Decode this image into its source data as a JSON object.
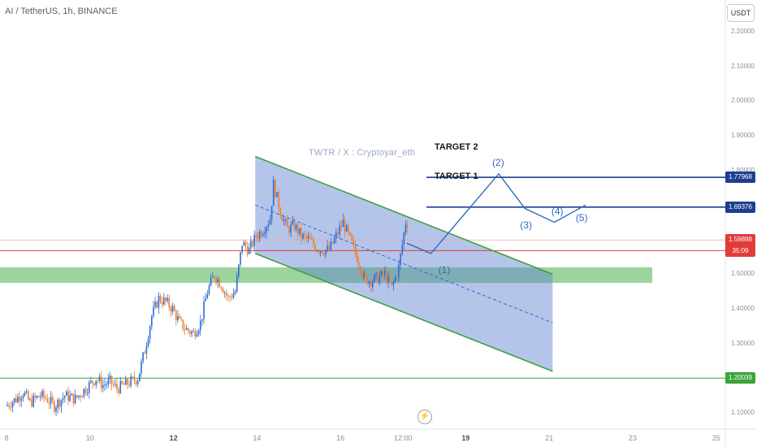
{
  "header": {
    "title": "AI / TetherUS, 1h, BINANCE",
    "currency_button": "USDT"
  },
  "watermark": "TWTR / X : Cryptoyar_eth",
  "replay_icon": "lightning-icon",
  "chart_data": {
    "type": "candlestick",
    "symbol": "AI / TetherUS",
    "interval": "1h",
    "exchange": "BINANCE",
    "ylim": [
      1.11,
      2.25
    ],
    "y_ticks": [
      {
        "label": "2.20000",
        "value": 2.2
      },
      {
        "label": "2.10000",
        "value": 2.1
      },
      {
        "label": "2.00000",
        "value": 2.0
      },
      {
        "label": "1.90000",
        "value": 1.9
      },
      {
        "label": "1.80000",
        "value": 1.8
      },
      {
        "label": "1.70000",
        "value": 1.7
      },
      {
        "label": "1.60000",
        "value": 1.6
      },
      {
        "label": "1.50000",
        "value": 1.5
      },
      {
        "label": "1.40000",
        "value": 1.4
      },
      {
        "label": "1.30000",
        "value": 1.3
      },
      {
        "label": "1.20000",
        "value": 1.2
      },
      {
        "label": "1.10000",
        "value": 1.1
      }
    ],
    "x_ticks": [
      {
        "label": "8",
        "t": 0,
        "bold": false
      },
      {
        "label": "10",
        "t": 48,
        "bold": false
      },
      {
        "label": "12",
        "t": 96,
        "bold": true
      },
      {
        "label": "14",
        "t": 144,
        "bold": false
      },
      {
        "label": "16",
        "t": 192,
        "bold": false
      },
      {
        "label": "12:00",
        "t": 228,
        "bold": false
      },
      {
        "label": "19",
        "t": 264,
        "bold": true
      },
      {
        "label": "21",
        "t": 312,
        "bold": false
      },
      {
        "label": "23",
        "t": 360,
        "bold": false
      },
      {
        "label": "25",
        "t": 408,
        "bold": false
      }
    ],
    "price_path": [
      [
        0,
        1.12
      ],
      [
        6,
        1.14
      ],
      [
        10,
        1.16
      ],
      [
        14,
        1.13
      ],
      [
        20,
        1.15
      ],
      [
        24,
        1.14
      ],
      [
        28,
        1.12
      ],
      [
        34,
        1.15
      ],
      [
        40,
        1.14
      ],
      [
        44,
        1.16
      ],
      [
        48,
        1.18
      ],
      [
        52,
        1.2
      ],
      [
        56,
        1.18
      ],
      [
        60,
        1.19
      ],
      [
        64,
        1.17
      ],
      [
        68,
        1.18
      ],
      [
        72,
        1.19
      ],
      [
        76,
        1.2
      ],
      [
        80,
        1.28
      ],
      [
        84,
        1.38
      ],
      [
        88,
        1.43
      ],
      [
        92,
        1.42
      ],
      [
        96,
        1.4
      ],
      [
        100,
        1.36
      ],
      [
        104,
        1.34
      ],
      [
        108,
        1.33
      ],
      [
        112,
        1.36
      ],
      [
        116,
        1.45
      ],
      [
        120,
        1.5
      ],
      [
        124,
        1.47
      ],
      [
        128,
        1.43
      ],
      [
        132,
        1.45
      ],
      [
        136,
        1.59
      ],
      [
        140,
        1.57
      ],
      [
        144,
        1.61
      ],
      [
        148,
        1.63
      ],
      [
        152,
        1.66
      ],
      [
        154,
        1.76
      ],
      [
        158,
        1.68
      ],
      [
        162,
        1.63
      ],
      [
        166,
        1.64
      ],
      [
        170,
        1.61
      ],
      [
        174,
        1.6
      ],
      [
        178,
        1.58
      ],
      [
        182,
        1.57
      ],
      [
        186,
        1.57
      ],
      [
        190,
        1.61
      ],
      [
        194,
        1.65
      ],
      [
        198,
        1.6
      ],
      [
        202,
        1.55
      ],
      [
        206,
        1.49
      ],
      [
        210,
        1.48
      ],
      [
        214,
        1.49
      ],
      [
        218,
        1.5
      ],
      [
        222,
        1.46
      ],
      [
        226,
        1.52
      ],
      [
        230,
        1.65
      ]
    ],
    "channel": {
      "upper": [
        [
          143,
          1.84
        ],
        [
          314,
          1.5
        ]
      ],
      "lower": [
        [
          143,
          1.56
        ],
        [
          314,
          1.22
        ]
      ],
      "median": [
        [
          143,
          1.7
        ],
        [
          314,
          1.36
        ]
      ]
    },
    "support_zone": [
      1.475,
      1.52
    ],
    "horizontal_lines": [
      {
        "price": 1.77968,
        "label": "1.77968",
        "color": "#1f3e8f",
        "name": "TARGET 2"
      },
      {
        "price": 1.69376,
        "label": "1.69376",
        "color": "#1f3e8f",
        "name": "TARGET 1"
      },
      {
        "price": 1.56831,
        "label": "1.56831",
        "color": "#e23b3b",
        "name": ""
      },
      {
        "price": 1.20039,
        "label": "1.20039",
        "color": "#3aa33a",
        "name": ""
      }
    ],
    "current_price": {
      "price": 1.59898,
      "label": "1.59898",
      "countdown": "35:09",
      "color": "#e23b3b"
    },
    "projection_path": [
      [
        230,
        1.59
      ],
      [
        244,
        1.56
      ],
      [
        283,
        1.79
      ],
      [
        298,
        1.69
      ],
      [
        315,
        1.65
      ],
      [
        333,
        1.7
      ]
    ],
    "wave_labels": [
      {
        "text": "(1)",
        "t": 252,
        "price": 1.51
      },
      {
        "text": "(2)",
        "t": 283,
        "price": 1.82
      },
      {
        "text": "(3)",
        "t": 299,
        "price": 1.64
      },
      {
        "text": "(4)",
        "t": 317,
        "price": 1.68
      },
      {
        "text": "(5)",
        "t": 331,
        "price": 1.66
      }
    ],
    "annotations": [
      "TARGET 2",
      "TARGET 1"
    ]
  },
  "colors": {
    "up": "#2e6bd6",
    "down": "#f07c24",
    "channel_fill": "#5b7fd0",
    "channel_line": "#3ba23a",
    "zone": "#4caf50",
    "projection": "#2d6cbf"
  }
}
